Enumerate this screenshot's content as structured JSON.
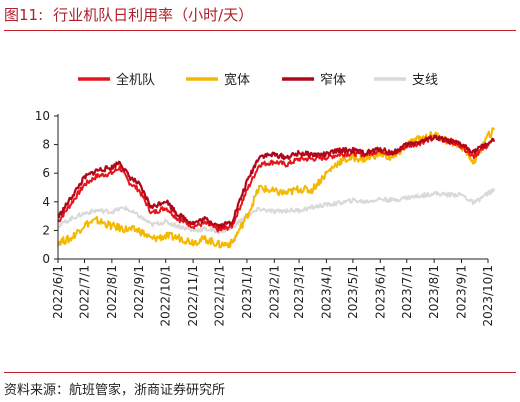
{
  "title": {
    "number": "图11:",
    "text": "行业机队日利用率（小时/天）"
  },
  "source": "资料来源：航班管家，浙商证券研究所",
  "chart_data": {
    "type": "line",
    "ylim": [
      0,
      10
    ],
    "yticks": [
      0,
      2,
      4,
      6,
      8,
      10
    ],
    "xticks": [
      "2022/6/1",
      "2022/7/1",
      "2022/8/1",
      "2022/9/1",
      "2022/10/1",
      "2022/11/1",
      "2022/12/1",
      "2023/1/1",
      "2023/2/1",
      "2023/3/1",
      "2023/4/1",
      "2023/5/1",
      "2023/6/1",
      "2023/7/1",
      "2023/8/1",
      "2023/9/1",
      "2023/10/1"
    ],
    "legend_position": "top",
    "series": [
      {
        "name": "全机队",
        "color": "#e8141c",
        "points": [
          [
            "2022/6/1",
            2.6
          ],
          [
            "2022/6/15",
            3.8
          ],
          [
            "2022/7/1",
            5.2
          ],
          [
            "2022/7/15",
            5.8
          ],
          [
            "2022/8/1",
            6.0
          ],
          [
            "2022/8/10",
            6.4
          ],
          [
            "2022/8/20",
            5.4
          ],
          [
            "2022/9/1",
            4.8
          ],
          [
            "2022/9/15",
            3.2
          ],
          [
            "2022/10/1",
            3.6
          ],
          [
            "2022/10/15",
            2.8
          ],
          [
            "2022/11/1",
            2.3
          ],
          [
            "2022/11/15",
            2.5
          ],
          [
            "2022/12/1",
            2.0
          ],
          [
            "2022/12/15",
            2.3
          ],
          [
            "2023/1/1",
            4.8
          ],
          [
            "2023/1/15",
            6.6
          ],
          [
            "2023/2/1",
            6.8
          ],
          [
            "2023/2/15",
            6.6
          ],
          [
            "2023/3/1",
            7.0
          ],
          [
            "2023/3/15",
            7.0
          ],
          [
            "2023/4/1",
            7.1
          ],
          [
            "2023/4/15",
            7.3
          ],
          [
            "2023/5/1",
            7.4
          ],
          [
            "2023/5/15",
            7.3
          ],
          [
            "2023/6/1",
            7.6
          ],
          [
            "2023/6/15",
            7.3
          ],
          [
            "2023/7/1",
            7.9
          ],
          [
            "2023/7/15",
            8.1
          ],
          [
            "2023/8/1",
            8.5
          ],
          [
            "2023/8/15",
            8.3
          ],
          [
            "2023/9/1",
            7.9
          ],
          [
            "2023/9/15",
            7.2
          ],
          [
            "2023/10/1",
            8.0
          ],
          [
            "2023/10/8",
            8.3
          ]
        ]
      },
      {
        "name": "宽体",
        "color": "#f5b800",
        "points": [
          [
            "2022/6/1",
            1.2
          ],
          [
            "2022/6/15",
            1.4
          ],
          [
            "2022/7/1",
            2.4
          ],
          [
            "2022/7/15",
            2.7
          ],
          [
            "2022/8/1",
            2.3
          ],
          [
            "2022/8/15",
            2.1
          ],
          [
            "2022/9/1",
            2.0
          ],
          [
            "2022/9/15",
            1.4
          ],
          [
            "2022/10/1",
            1.6
          ],
          [
            "2022/10/15",
            1.5
          ],
          [
            "2022/11/1",
            1.2
          ],
          [
            "2022/11/15",
            1.4
          ],
          [
            "2022/12/1",
            1.0
          ],
          [
            "2022/12/15",
            1.1
          ],
          [
            "2023/1/1",
            3.0
          ],
          [
            "2023/1/15",
            5.0
          ],
          [
            "2023/2/1",
            4.7
          ],
          [
            "2023/2/15",
            4.6
          ],
          [
            "2023/3/1",
            4.9
          ],
          [
            "2023/3/15",
            4.8
          ],
          [
            "2023/4/1",
            6.0
          ],
          [
            "2023/4/15",
            6.8
          ],
          [
            "2023/5/1",
            7.1
          ],
          [
            "2023/5/15",
            7.0
          ],
          [
            "2023/6/1",
            7.4
          ],
          [
            "2023/6/15",
            7.0
          ],
          [
            "2023/7/1",
            8.0
          ],
          [
            "2023/7/15",
            8.4
          ],
          [
            "2023/8/1",
            8.7
          ],
          [
            "2023/8/15",
            8.3
          ],
          [
            "2023/9/1",
            7.9
          ],
          [
            "2023/9/15",
            6.8
          ],
          [
            "2023/10/1",
            8.6
          ],
          [
            "2023/10/8",
            9.0
          ]
        ]
      },
      {
        "name": "窄体",
        "color": "#b0071a",
        "points": [
          [
            "2022/6/1",
            2.9
          ],
          [
            "2022/6/15",
            4.2
          ],
          [
            "2022/7/1",
            5.7
          ],
          [
            "2022/7/15",
            6.2
          ],
          [
            "2022/8/1",
            6.4
          ],
          [
            "2022/8/10",
            6.8
          ],
          [
            "2022/8/20",
            5.8
          ],
          [
            "2022/9/1",
            5.2
          ],
          [
            "2022/9/15",
            3.6
          ],
          [
            "2022/10/1",
            4.1
          ],
          [
            "2022/10/15",
            3.1
          ],
          [
            "2022/11/1",
            2.5
          ],
          [
            "2022/11/15",
            2.8
          ],
          [
            "2022/12/1",
            2.3
          ],
          [
            "2022/12/15",
            2.6
          ],
          [
            "2023/1/1",
            5.4
          ],
          [
            "2023/1/15",
            7.2
          ],
          [
            "2023/2/1",
            7.3
          ],
          [
            "2023/2/15",
            7.1
          ],
          [
            "2023/3/1",
            7.4
          ],
          [
            "2023/3/15",
            7.3
          ],
          [
            "2023/4/1",
            7.3
          ],
          [
            "2023/4/15",
            7.6
          ],
          [
            "2023/5/1",
            7.6
          ],
          [
            "2023/5/15",
            7.4
          ],
          [
            "2023/6/1",
            7.7
          ],
          [
            "2023/6/15",
            7.4
          ],
          [
            "2023/7/1",
            8.0
          ],
          [
            "2023/7/15",
            8.2
          ],
          [
            "2023/8/1",
            8.5
          ],
          [
            "2023/8/15",
            8.3
          ],
          [
            "2023/9/1",
            8.0
          ],
          [
            "2023/9/15",
            7.5
          ],
          [
            "2023/10/1",
            8.1
          ],
          [
            "2023/10/8",
            8.3
          ]
        ]
      },
      {
        "name": "支线",
        "color": "#d9d9d9",
        "points": [
          [
            "2022/6/1",
            2.3
          ],
          [
            "2022/6/15",
            2.8
          ],
          [
            "2022/7/1",
            3.2
          ],
          [
            "2022/7/15",
            3.4
          ],
          [
            "2022/8/1",
            3.3
          ],
          [
            "2022/8/15",
            3.6
          ],
          [
            "2022/9/1",
            3.0
          ],
          [
            "2022/9/15",
            2.4
          ],
          [
            "2022/10/1",
            2.6
          ],
          [
            "2022/10/15",
            2.3
          ],
          [
            "2022/11/1",
            2.0
          ],
          [
            "2022/11/15",
            2.1
          ],
          [
            "2022/12/1",
            1.9
          ],
          [
            "2022/12/15",
            2.2
          ],
          [
            "2023/1/1",
            3.0
          ],
          [
            "2023/1/15",
            3.5
          ],
          [
            "2023/2/1",
            3.3
          ],
          [
            "2023/2/15",
            3.4
          ],
          [
            "2023/3/1",
            3.4
          ],
          [
            "2023/3/15",
            3.6
          ],
          [
            "2023/4/1",
            3.8
          ],
          [
            "2023/4/15",
            3.9
          ],
          [
            "2023/5/1",
            4.1
          ],
          [
            "2023/5/15",
            4.0
          ],
          [
            "2023/6/1",
            4.2
          ],
          [
            "2023/6/15",
            4.1
          ],
          [
            "2023/7/1",
            4.3
          ],
          [
            "2023/7/15",
            4.4
          ],
          [
            "2023/8/1",
            4.6
          ],
          [
            "2023/8/15",
            4.5
          ],
          [
            "2023/9/1",
            4.5
          ],
          [
            "2023/9/15",
            3.9
          ],
          [
            "2023/10/1",
            4.6
          ],
          [
            "2023/10/8",
            4.8
          ]
        ]
      }
    ]
  }
}
